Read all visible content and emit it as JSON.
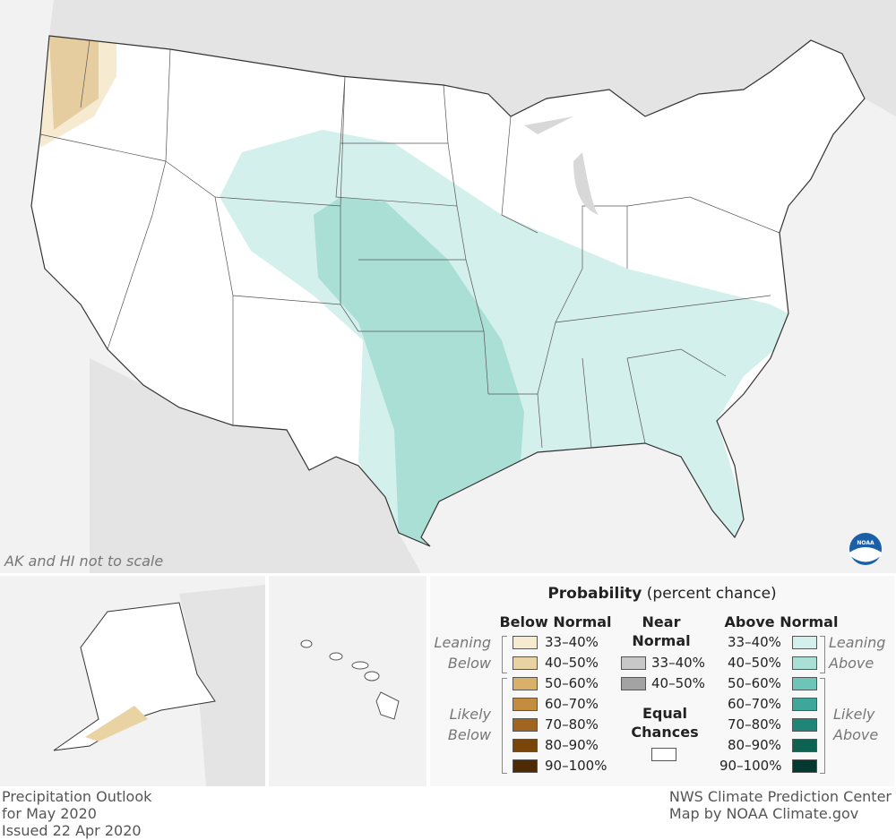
{
  "map": {
    "note": "AK and HI not to scale",
    "logo": "NOAA"
  },
  "legend": {
    "title": "Probability",
    "subtitle": "(percent chance)",
    "below": {
      "heading": "Below Normal",
      "leaning": "Leaning Below",
      "likely": "Likely Below",
      "items": [
        {
          "label": "33–40%",
          "color": "#f6ead0"
        },
        {
          "label": "40–50%",
          "color": "#ead3a3"
        },
        {
          "label": "50–60%",
          "color": "#d8b06a"
        },
        {
          "label": "60–70%",
          "color": "#c48c3f"
        },
        {
          "label": "70–80%",
          "color": "#a0661f"
        },
        {
          "label": "80–90%",
          "color": "#7a4509"
        },
        {
          "label": "90–100%",
          "color": "#4f2b05"
        }
      ]
    },
    "near": {
      "heading": "Near Normal",
      "items": [
        {
          "label": "33–40%",
          "color": "#c8c8c8"
        },
        {
          "label": "40–50%",
          "color": "#a3a3a3"
        }
      ],
      "equal": "Equal Chances",
      "equal_color": "#ffffff"
    },
    "above": {
      "heading": "Above Normal",
      "leaning": "Leaning Above",
      "likely": "Likely Above",
      "items": [
        {
          "label": "33–40%",
          "color": "#d4f0ec"
        },
        {
          "label": "40–50%",
          "color": "#aadfd6"
        },
        {
          "label": "50–60%",
          "color": "#6cc5b8"
        },
        {
          "label": "60–70%",
          "color": "#3ea69a"
        },
        {
          "label": "70–80%",
          "color": "#1f8577"
        },
        {
          "label": "80–90%",
          "color": "#0d6252"
        },
        {
          "label": "90–100%",
          "color": "#04392f"
        }
      ]
    }
  },
  "footer": {
    "left": [
      "Precipitation Outlook",
      "for May 2020",
      "Issued 22 Apr 2020"
    ],
    "right": [
      "NWS Climate Prediction Center",
      "Map by NOAA Climate.gov"
    ]
  }
}
